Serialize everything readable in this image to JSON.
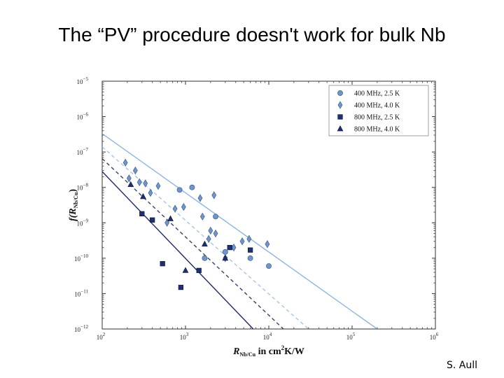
{
  "slide": {
    "title": "The “PV” procedure doesn't work for bulk Nb",
    "author": "S. Aull"
  },
  "chart_data": {
    "type": "scatter",
    "title": "",
    "x_scale": "log",
    "y_scale": "log",
    "xlim": [
      100,
      1000000
    ],
    "ylim": [
      1e-12,
      1e-05
    ],
    "x_ticks": [
      {
        "value": 100,
        "base": "10",
        "exp": "2"
      },
      {
        "value": 1000,
        "base": "10",
        "exp": "3"
      },
      {
        "value": 10000,
        "base": "10",
        "exp": "4"
      },
      {
        "value": 100000,
        "base": "10",
        "exp": "5"
      },
      {
        "value": 1000000,
        "base": "10",
        "exp": "6"
      }
    ],
    "y_ticks": [
      {
        "value": 1e-12,
        "base": "10",
        "exp": "−12"
      },
      {
        "value": 1e-11,
        "base": "10",
        "exp": "−11"
      },
      {
        "value": 1e-10,
        "base": "10",
        "exp": "−10"
      },
      {
        "value": 1e-09,
        "base": "10",
        "exp": "−9"
      },
      {
        "value": 1e-08,
        "base": "10",
        "exp": "−8"
      },
      {
        "value": 1e-07,
        "base": "10",
        "exp": "−7"
      },
      {
        "value": 1e-06,
        "base": "10",
        "exp": "−6"
      },
      {
        "value": 1e-05,
        "base": "10",
        "exp": "−5"
      }
    ],
    "xlabel": {
      "main": "R",
      "sub": "Nb/Cu",
      "rest": " in cm",
      "sup": "2",
      "rest2": "K/W"
    },
    "ylabel": {
      "main": "f(R",
      "sub": "Nb/Cu",
      "rest": ")"
    },
    "legend_position": "top-right",
    "series": [
      {
        "name": "400 MHz, 2.5 K",
        "marker": "circle",
        "color": "#6e96c8",
        "points": [
          [
            850,
            8.5e-09
          ],
          [
            1200,
            1e-08
          ],
          [
            2300,
            1.5e-09
          ],
          [
            1700,
            1e-10
          ],
          [
            3000,
            1.5e-10
          ],
          [
            6000,
            1e-10
          ],
          [
            10000,
            6e-11
          ]
        ]
      },
      {
        "name": "400 MHz, 4.0 K",
        "marker": "diamond",
        "color": "#6e96c8",
        "points": [
          [
            190,
            5e-08
          ],
          [
            210,
            1.8e-08
          ],
          [
            250,
            3e-08
          ],
          [
            280,
            1.4e-08
          ],
          [
            330,
            1.3e-08
          ],
          [
            380,
            7e-09
          ],
          [
            470,
            1.1e-08
          ],
          [
            750,
            2.5e-09
          ],
          [
            950,
            2.8e-09
          ],
          [
            1500,
            5e-09
          ],
          [
            1600,
            1.5e-09
          ],
          [
            2200,
            6e-09
          ],
          [
            1900,
            3.5e-10
          ],
          [
            2300,
            5e-10
          ],
          [
            2000,
            6e-10
          ],
          [
            3000,
            1e-10
          ],
          [
            3800,
            2e-10
          ],
          [
            4800,
            3e-10
          ],
          [
            5800,
            3.5e-10
          ],
          [
            9600,
            2.5e-10
          ],
          [
            600,
            1e-09
          ]
        ]
      },
      {
        "name": "800 MHz, 2.5 K",
        "marker": "square",
        "color": "#1f3070",
        "points": [
          [
            300,
            1.8e-09
          ],
          [
            400,
            1.2e-09
          ],
          [
            530,
            7e-11
          ],
          [
            880,
            1.5e-11
          ],
          [
            1450,
            4.5e-11
          ],
          [
            3400,
            2e-10
          ],
          [
            6000,
            1.7e-10
          ]
        ]
      },
      {
        "name": "800 MHz, 4.0 K",
        "marker": "triangle",
        "color": "#1f3070",
        "points": [
          [
            220,
            1.2e-08
          ],
          [
            310,
            5.5e-09
          ],
          [
            660,
            1.3e-09
          ],
          [
            1000,
            4.5e-11
          ],
          [
            1700,
            2.5e-10
          ],
          [
            3000,
            1e-10
          ]
        ]
      }
    ],
    "fit_lines": [
      {
        "color": "#8fb4e0",
        "dash": "none",
        "from": [
          100,
          3.3e-07
        ],
        "to": [
          200000,
          1e-12
        ]
      },
      {
        "color": "#a8c4e6",
        "dash": "dashed",
        "from": [
          100,
          1.4e-07
        ],
        "to": [
          30000,
          1e-12
        ]
      },
      {
        "color": "#34406e",
        "dash": "dashed",
        "from": [
          100,
          6.5e-08
        ],
        "to": [
          15000,
          1e-12
        ]
      },
      {
        "color": "#1f2a66",
        "dash": "none",
        "from": [
          100,
          2.8e-08
        ],
        "to": [
          6500,
          1e-12
        ]
      }
    ]
  }
}
